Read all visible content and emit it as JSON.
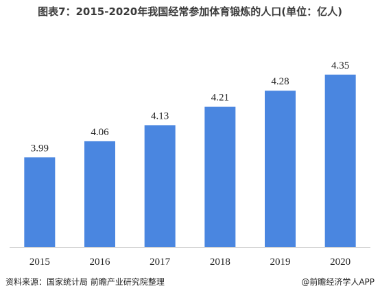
{
  "title": "图表7：2015-2020年我国经常参加体育锻炼的人口(单位：亿人)",
  "chart_data": {
    "type": "bar",
    "categories": [
      "2015",
      "2016",
      "2017",
      "2018",
      "2019",
      "2020"
    ],
    "values": [
      3.99,
      4.06,
      4.13,
      4.21,
      4.28,
      4.35
    ],
    "value_labels": [
      "3.99",
      "4.06",
      "4.13",
      "4.21",
      "4.28",
      "4.35"
    ],
    "bar_color": "#4a86e0",
    "grid": false,
    "legend": "none",
    "ylim": [
      3.6,
      4.4
    ]
  },
  "footer": {
    "source": "资料来源：国家统计局 前瞻产业研究院整理",
    "brand": "@前瞻经济学人APP"
  }
}
